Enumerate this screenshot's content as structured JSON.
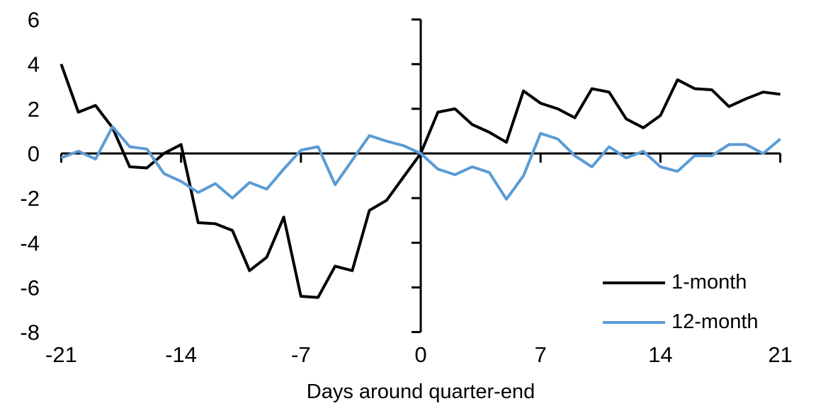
{
  "chart_data": {
    "type": "line",
    "title": "",
    "xlabel": "Days around quarter-end",
    "ylabel": "",
    "xlim": [
      -21,
      21
    ],
    "ylim": [
      -8,
      6
    ],
    "xticks": [
      -21,
      -14,
      -7,
      0,
      7,
      14,
      21
    ],
    "yticks": [
      6,
      4,
      2,
      0,
      -2,
      -4,
      -6,
      -8
    ],
    "grid": false,
    "legend_position": "lower-right",
    "axis_color": "#000000",
    "x": [
      -21,
      -20,
      -19,
      -18,
      -17,
      -16,
      -15,
      -14,
      -13,
      -12,
      -11,
      -10,
      -9,
      -8,
      -7,
      -6,
      -5,
      -4,
      -3,
      -2,
      -1,
      0,
      1,
      2,
      3,
      4,
      5,
      6,
      7,
      8,
      9,
      10,
      11,
      12,
      13,
      14,
      15,
      16,
      17,
      18,
      19,
      20,
      21
    ],
    "series": [
      {
        "name": "1-month",
        "color": "#000000",
        "values": [
          4.0,
          1.85,
          2.15,
          1.15,
          -0.6,
          -0.65,
          0.0,
          0.4,
          -3.1,
          -3.15,
          -3.45,
          -5.25,
          -4.65,
          -2.85,
          -6.4,
          -6.45,
          -5.05,
          -5.25,
          -2.55,
          -2.1,
          -1.05,
          0.0,
          1.85,
          2.0,
          1.3,
          0.95,
          0.5,
          2.8,
          2.25,
          2.0,
          1.6,
          2.9,
          2.75,
          1.55,
          1.15,
          1.7,
          3.3,
          2.9,
          2.85,
          2.1,
          2.45,
          2.75,
          2.65
        ]
      },
      {
        "name": "12-month",
        "color": "#5B9BD5",
        "values": [
          -0.2,
          0.1,
          -0.25,
          1.2,
          0.3,
          0.2,
          -0.9,
          -1.25,
          -1.75,
          -1.35,
          -2.0,
          -1.3,
          -1.6,
          -0.7,
          0.15,
          0.3,
          -1.4,
          -0.3,
          0.8,
          0.55,
          0.35,
          0.0,
          -0.7,
          -0.95,
          -0.6,
          -0.85,
          -2.05,
          -1.0,
          0.9,
          0.65,
          -0.1,
          -0.6,
          0.3,
          -0.2,
          0.1,
          -0.6,
          -0.8,
          -0.1,
          -0.1,
          0.4,
          0.4,
          0.0,
          0.65
        ]
      }
    ]
  }
}
